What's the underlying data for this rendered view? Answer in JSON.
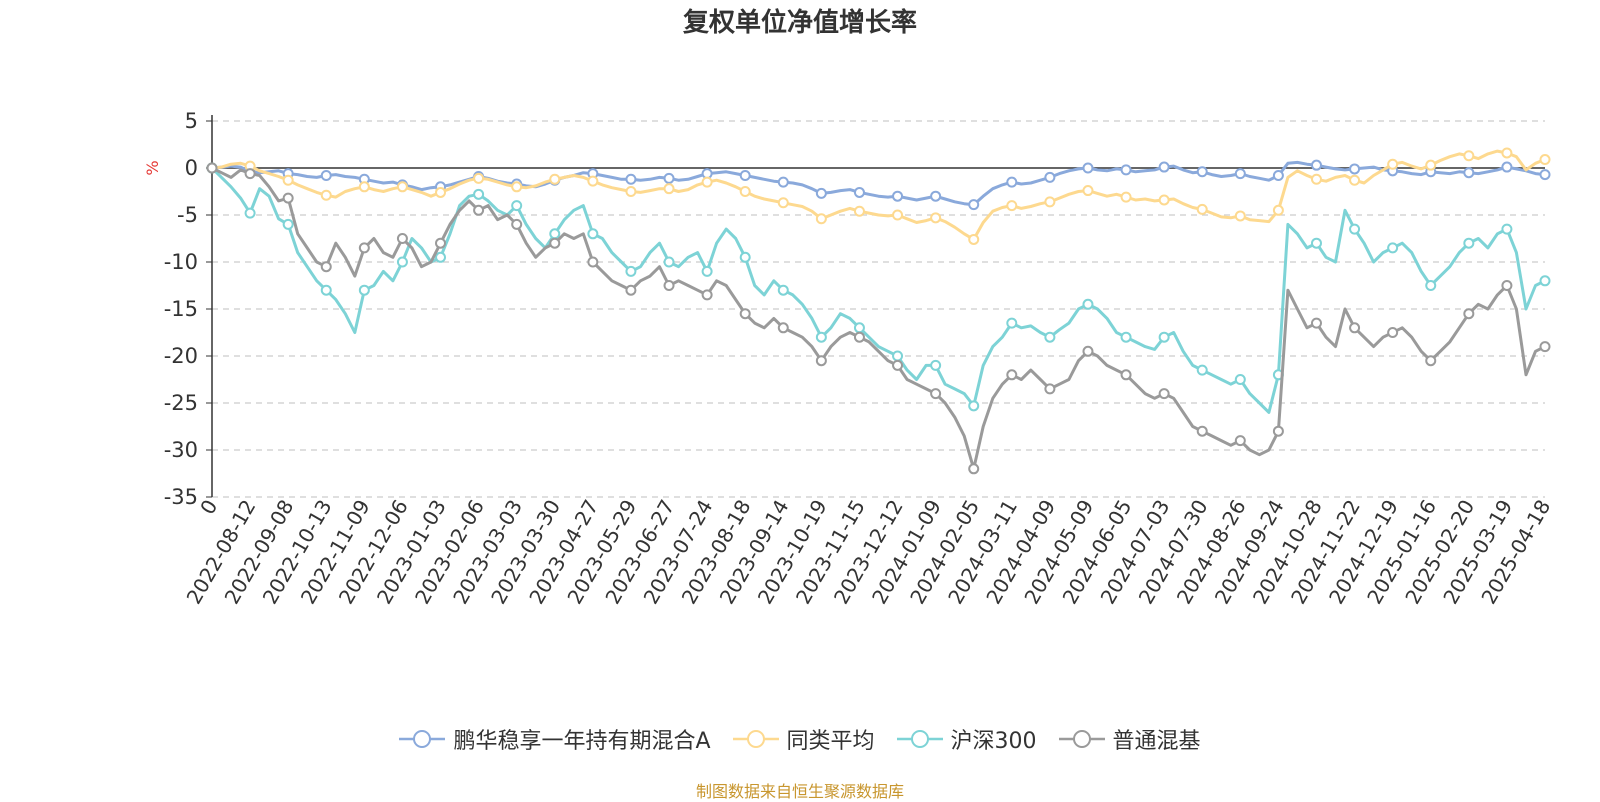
{
  "title": "复权单位净值增长率",
  "source": "制图数据来自恒生聚源数据库",
  "colors": {
    "fund": "#8aa9db",
    "category_avg": "#fdd98f",
    "csi300": "#7dd3d6",
    "mixed_fund": "#9a9a9a",
    "axis": "#333333",
    "grid": "#cccccc",
    "unit": "#e53935"
  },
  "chart_data": {
    "type": "line",
    "title": "复权单位净值增长率",
    "ylabel": "%",
    "ylim": [
      -35,
      5
    ],
    "yticks": [
      5,
      0,
      -5,
      -10,
      -15,
      -20,
      -25,
      -30,
      -35
    ],
    "grid": "horizontal-dashed",
    "legend_position": "bottom",
    "x_tick_labels": [
      "0",
      "2022-08-12",
      "2022-09-08",
      "2022-10-13",
      "2022-11-09",
      "2022-12-06",
      "2023-01-03",
      "2023-02-06",
      "2023-03-03",
      "2023-03-30",
      "2023-04-27",
      "2023-05-29",
      "2023-06-27",
      "2023-07-24",
      "2023-08-18",
      "2023-09-14",
      "2023-10-19",
      "2023-11-15",
      "2023-12-12",
      "2024-01-09",
      "2024-02-05",
      "2024-03-11",
      "2024-04-09",
      "2024-05-09",
      "2024-06-05",
      "2024-07-03",
      "2024-07-30",
      "2024-08-26",
      "2024-09-24",
      "2024-10-28",
      "2024-11-22",
      "2024-12-19",
      "2025-01-16",
      "2025-02-20",
      "2025-03-19",
      "2025-04-18"
    ],
    "x": [
      "2022-07-15",
      "2022-07-22",
      "2022-07-29",
      "2022-08-05",
      "2022-08-12",
      "2022-08-19",
      "2022-08-26",
      "2022-09-02",
      "2022-09-08",
      "2022-09-16",
      "2022-09-23",
      "2022-09-30",
      "2022-10-13",
      "2022-10-21",
      "2022-10-28",
      "2022-11-04",
      "2022-11-09",
      "2022-11-18",
      "2022-11-25",
      "2022-12-02",
      "2022-12-06",
      "2022-12-16",
      "2022-12-23",
      "2022-12-30",
      "2023-01-03",
      "2023-01-13",
      "2023-01-20",
      "2023-01-30",
      "2023-02-06",
      "2023-02-10",
      "2023-02-17",
      "2023-02-24",
      "2023-03-03",
      "2023-03-10",
      "2023-03-17",
      "2023-03-24",
      "2023-03-30",
      "2023-04-07",
      "2023-04-14",
      "2023-04-21",
      "2023-04-27",
      "2023-05-05",
      "2023-05-12",
      "2023-05-19",
      "2023-05-29",
      "2023-06-02",
      "2023-06-09",
      "2023-06-16",
      "2023-06-27",
      "2023-06-30",
      "2023-07-07",
      "2023-07-14",
      "2023-07-24",
      "2023-07-28",
      "2023-08-04",
      "2023-08-11",
      "2023-08-18",
      "2023-08-25",
      "2023-09-01",
      "2023-09-08",
      "2023-09-14",
      "2023-09-22",
      "2023-09-28",
      "2023-10-13",
      "2023-10-19",
      "2023-10-27",
      "2023-11-03",
      "2023-11-10",
      "2023-11-15",
      "2023-11-24",
      "2023-12-01",
      "2023-12-08",
      "2023-12-12",
      "2023-12-22",
      "2023-12-29",
      "2024-01-05",
      "2024-01-09",
      "2024-01-19",
      "2024-01-26",
      "2024-02-02",
      "2024-02-05",
      "2024-02-08",
      "2024-02-23",
      "2024-03-01",
      "2024-03-11",
      "2024-03-15",
      "2024-03-22",
      "2024-03-29",
      "2024-04-09",
      "2024-04-12",
      "2024-04-19",
      "2024-04-26",
      "2024-05-09",
      "2024-05-17",
      "2024-05-24",
      "2024-05-31",
      "2024-06-05",
      "2024-06-14",
      "2024-06-21",
      "2024-06-28",
      "2024-07-03",
      "2024-07-12",
      "2024-07-19",
      "2024-07-26",
      "2024-07-30",
      "2024-08-09",
      "2024-08-16",
      "2024-08-23",
      "2024-08-26",
      "2024-09-06",
      "2024-09-13",
      "2024-09-20",
      "2024-09-24",
      "2024-09-30",
      "2024-10-11",
      "2024-10-18",
      "2024-10-28",
      "2024-11-01",
      "2024-11-08",
      "2024-11-15",
      "2024-11-22",
      "2024-11-29",
      "2024-12-06",
      "2024-12-13",
      "2024-12-19",
      "2024-12-27",
      "2025-01-03",
      "2025-01-10",
      "2025-01-16",
      "2025-01-24",
      "2025-02-07",
      "2025-02-14",
      "2025-02-20",
      "2025-02-28",
      "2025-03-07",
      "2025-03-14",
      "2025-03-19",
      "2025-03-28",
      "2025-04-03",
      "2025-04-11",
      "2025-04-18"
    ],
    "series": [
      {
        "name": "鹏华稳享一年持有期混合A",
        "color": "#8aa9db",
        "values": [
          0,
          0.1,
          0.2,
          0.1,
          -0.4,
          -0.5,
          -0.4,
          -0.3,
          -0.6,
          -0.7,
          -0.9,
          -1.0,
          -0.8,
          -0.7,
          -0.9,
          -1.0,
          -1.2,
          -1.4,
          -1.6,
          -1.5,
          -1.8,
          -2.0,
          -2.3,
          -2.1,
          -2.0,
          -1.8,
          -1.5,
          -1.2,
          -0.9,
          -1.1,
          -1.4,
          -1.6,
          -1.7,
          -1.9,
          -2.0,
          -1.7,
          -1.3,
          -1.0,
          -0.8,
          -0.5,
          -0.6,
          -0.8,
          -1.0,
          -1.2,
          -1.2,
          -1.3,
          -1.2,
          -1.0,
          -1.1,
          -1.3,
          -1.2,
          -0.9,
          -0.6,
          -0.5,
          -0.4,
          -0.6,
          -0.8,
          -1.0,
          -1.2,
          -1.4,
          -1.5,
          -1.6,
          -1.8,
          -2.2,
          -2.7,
          -2.6,
          -2.4,
          -2.3,
          -2.6,
          -2.8,
          -3.0,
          -3.1,
          -3.0,
          -3.2,
          -3.4,
          -3.2,
          -3.0,
          -3.3,
          -3.6,
          -3.8,
          -3.9,
          -3.0,
          -2.2,
          -1.8,
          -1.5,
          -1.7,
          -1.6,
          -1.3,
          -1.0,
          -0.6,
          -0.3,
          -0.1,
          0.0,
          -0.2,
          -0.3,
          -0.1,
          -0.2,
          -0.4,
          -0.3,
          -0.2,
          0.1,
          0.2,
          -0.2,
          -0.5,
          -0.4,
          -0.7,
          -0.9,
          -0.8,
          -0.6,
          -0.9,
          -1.1,
          -1.3,
          -0.8,
          0.5,
          0.6,
          0.4,
          0.3,
          0.1,
          -0.1,
          -0.2,
          -0.1,
          0.0,
          0.1,
          -0.2,
          -0.3,
          -0.4,
          -0.6,
          -0.7,
          -0.4,
          -0.5,
          -0.6,
          -0.4,
          -0.5,
          -0.6,
          -0.4,
          -0.2,
          0.1,
          -0.1,
          -0.3,
          -0.6,
          -0.7
        ]
      },
      {
        "name": "同类平均",
        "color": "#fdd98f",
        "values": [
          0,
          0.1,
          0.4,
          0.5,
          0.2,
          -0.3,
          -0.6,
          -0.9,
          -1.3,
          -1.8,
          -2.2,
          -2.6,
          -2.9,
          -3.1,
          -2.5,
          -2.2,
          -2.0,
          -2.3,
          -2.5,
          -2.2,
          -2.0,
          -2.3,
          -2.6,
          -3.0,
          -2.6,
          -2.2,
          -1.7,
          -1.3,
          -1.1,
          -1.2,
          -1.5,
          -1.8,
          -2.0,
          -2.1,
          -1.9,
          -1.5,
          -1.2,
          -1.0,
          -0.8,
          -1.0,
          -1.4,
          -1.8,
          -2.1,
          -2.3,
          -2.5,
          -2.6,
          -2.4,
          -2.2,
          -2.2,
          -2.5,
          -2.3,
          -1.8,
          -1.5,
          -1.3,
          -1.6,
          -2.0,
          -2.5,
          -3.0,
          -3.3,
          -3.5,
          -3.7,
          -3.9,
          -4.1,
          -4.6,
          -5.4,
          -5.0,
          -4.6,
          -4.3,
          -4.6,
          -4.8,
          -5.0,
          -5.1,
          -5.0,
          -5.4,
          -5.8,
          -5.6,
          -5.3,
          -5.7,
          -6.3,
          -7.0,
          -7.6,
          -5.8,
          -4.6,
          -4.2,
          -4.0,
          -4.3,
          -4.1,
          -3.8,
          -3.6,
          -3.2,
          -2.8,
          -2.5,
          -2.4,
          -2.7,
          -3.0,
          -2.8,
          -3.1,
          -3.4,
          -3.3,
          -3.5,
          -3.4,
          -3.3,
          -3.8,
          -4.2,
          -4.4,
          -4.8,
          -5.2,
          -5.3,
          -5.1,
          -5.5,
          -5.6,
          -5.7,
          -4.5,
          -1.0,
          -0.3,
          -0.8,
          -1.2,
          -1.4,
          -1.0,
          -0.8,
          -1.3,
          -1.6,
          -0.8,
          -0.2,
          0.4,
          0.6,
          0.2,
          -0.1,
          0.3,
          0.8,
          1.2,
          1.5,
          1.3,
          1.0,
          1.5,
          1.8,
          1.6,
          1.2,
          -0.2,
          0.5,
          0.9
        ]
      },
      {
        "name": "沪深300",
        "color": "#7dd3d6",
        "values": [
          0,
          -1.0,
          -2.0,
          -3.2,
          -4.8,
          -2.2,
          -3.0,
          -5.4,
          -6.0,
          -9.0,
          -10.5,
          -12.0,
          -13.0,
          -14.0,
          -15.5,
          -17.5,
          -13.0,
          -12.5,
          -11.0,
          -12.0,
          -10.0,
          -7.5,
          -8.5,
          -10.0,
          -9.5,
          -7.0,
          -4.0,
          -3.0,
          -2.8,
          -3.5,
          -4.5,
          -5.0,
          -4.0,
          -6.0,
          -7.5,
          -8.5,
          -7.0,
          -5.5,
          -4.5,
          -4.0,
          -7.0,
          -7.5,
          -9.0,
          -10.0,
          -11.0,
          -10.5,
          -9.0,
          -8.0,
          -10.0,
          -10.5,
          -9.5,
          -9.0,
          -11.0,
          -8.0,
          -6.5,
          -7.5,
          -9.5,
          -12.5,
          -13.5,
          -12.0,
          -13.0,
          -13.5,
          -14.5,
          -16.0,
          -18.0,
          -17.0,
          -15.5,
          -16.0,
          -17.0,
          -18.0,
          -19.0,
          -19.5,
          -20.0,
          -21.5,
          -22.5,
          -21.0,
          -21.0,
          -23.0,
          -23.5,
          -24.0,
          -25.3,
          -21.0,
          -19.0,
          -18.0,
          -16.5,
          -17.0,
          -16.8,
          -17.5,
          -18.0,
          -17.2,
          -16.5,
          -15.0,
          -14.5,
          -15.0,
          -16.0,
          -17.5,
          -18.0,
          -18.5,
          -19.0,
          -19.3,
          -18.0,
          -17.5,
          -19.5,
          -21.0,
          -21.5,
          -22.0,
          -22.5,
          -23.0,
          -22.5,
          -24.0,
          -25.0,
          -26.0,
          -22.0,
          -6.0,
          -7.0,
          -8.5,
          -8.0,
          -9.5,
          -10.0,
          -4.5,
          -6.5,
          -8.0,
          -10.0,
          -9.0,
          -8.5,
          -8.0,
          -9.0,
          -11.0,
          -12.5,
          -11.5,
          -10.5,
          -9.0,
          -8.0,
          -7.5,
          -8.5,
          -7.0,
          -6.5,
          -9.0,
          -15.0,
          -12.5,
          -12.0
        ]
      },
      {
        "name": "普通混基",
        "color": "#9a9a9a",
        "values": [
          0,
          -0.5,
          -1.0,
          -0.2,
          -0.6,
          -0.8,
          -2.0,
          -3.5,
          -3.2,
          -7.0,
          -8.5,
          -10.0,
          -10.5,
          -8.0,
          -9.5,
          -11.5,
          -8.5,
          -7.5,
          -9.0,
          -9.5,
          -7.5,
          -8.5,
          -10.5,
          -10.0,
          -8.0,
          -6.0,
          -4.5,
          -3.5,
          -4.5,
          -4.0,
          -5.5,
          -5.0,
          -6.0,
          -8.0,
          -9.5,
          -8.5,
          -8.0,
          -7.0,
          -7.5,
          -7.0,
          -10.0,
          -11.0,
          -12.0,
          -12.5,
          -13.0,
          -12.0,
          -11.5,
          -10.5,
          -12.5,
          -12.0,
          -12.5,
          -13.0,
          -13.5,
          -12.0,
          -12.5,
          -14.0,
          -15.5,
          -16.5,
          -17.0,
          -16.0,
          -17.0,
          -17.5,
          -18.0,
          -19.0,
          -20.5,
          -19.0,
          -18.0,
          -17.5,
          -18.0,
          -18.5,
          -19.5,
          -20.5,
          -21.0,
          -22.5,
          -23.0,
          -23.5,
          -24.0,
          -25.0,
          -26.5,
          -28.5,
          -32.0,
          -27.5,
          -24.5,
          -23.0,
          -22.0,
          -22.5,
          -21.5,
          -22.5,
          -23.5,
          -23.0,
          -22.5,
          -20.5,
          -19.5,
          -20.0,
          -21.0,
          -21.5,
          -22.0,
          -23.0,
          -24.0,
          -24.5,
          -24.0,
          -24.5,
          -26.0,
          -27.5,
          -28.0,
          -28.5,
          -29.0,
          -29.5,
          -29.0,
          -30.0,
          -30.5,
          -30.0,
          -28.0,
          -13.0,
          -15.0,
          -17.0,
          -16.5,
          -18.0,
          -19.0,
          -15.0,
          -17.0,
          -18.0,
          -19.0,
          -18.0,
          -17.5,
          -17.0,
          -18.0,
          -19.5,
          -20.5,
          -19.5,
          -18.5,
          -17.0,
          -15.5,
          -14.5,
          -15.0,
          -13.5,
          -12.5,
          -15.0,
          -22.0,
          -19.5,
          -19.0
        ]
      }
    ]
  }
}
